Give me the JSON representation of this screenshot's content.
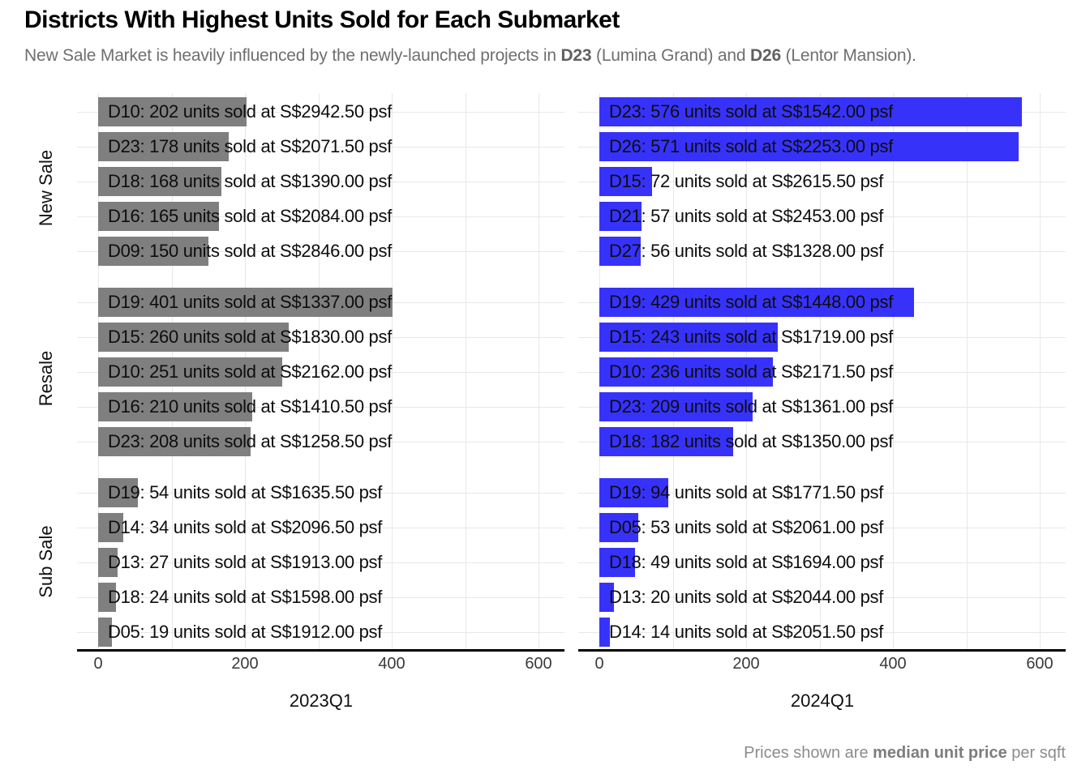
{
  "title": "Districts With Highest Units Sold for Each Submarket",
  "subtitle": {
    "pre": "New Sale Market is heavily influenced by the newly-launched projects in ",
    "bold1": "D23",
    "mid": " (Lumina Grand) and ",
    "bold2": "D26",
    "post": " (Lentor Mansion)."
  },
  "caption": {
    "pre": "Prices shown are ",
    "bold": "median unit price",
    "post": " per sqft"
  },
  "colors": {
    "bar_2023Q1": "#7f7f7f",
    "bar_2024Q1": "#3732fa",
    "gridline": "#e8e8e8",
    "axis_line": "#000000",
    "tick_text": "#3a3a3a",
    "bar_text": "#0d0d0d"
  },
  "chart_data": {
    "type": "bar",
    "orientation": "horizontal",
    "facet_rows": [
      "New Sale",
      "Resale",
      "Sub Sale"
    ],
    "facet_cols": [
      "2023Q1",
      "2024Q1"
    ],
    "x_ticks": [
      0,
      200,
      400,
      600
    ],
    "xlim": [
      0,
      635
    ],
    "grid": "on",
    "value_unit": "units sold",
    "panels": [
      {
        "row": "New Sale",
        "col": "2023Q1",
        "bars": [
          {
            "district": "D10",
            "units": 202,
            "psf": 2942.5,
            "label": "D10: 202 units sold at S$2942.50 psf"
          },
          {
            "district": "D23",
            "units": 178,
            "psf": 2071.5,
            "label": "D23: 178 units sold at S$2071.50 psf"
          },
          {
            "district": "D18",
            "units": 168,
            "psf": 1390.0,
            "label": "D18: 168 units sold at S$1390.00 psf"
          },
          {
            "district": "D16",
            "units": 165,
            "psf": 2084.0,
            "label": "D16: 165 units sold at S$2084.00 psf"
          },
          {
            "district": "D09",
            "units": 150,
            "psf": 2846.0,
            "label": "D09: 150 units sold at S$2846.00 psf"
          }
        ]
      },
      {
        "row": "New Sale",
        "col": "2024Q1",
        "bars": [
          {
            "district": "D23",
            "units": 576,
            "psf": 1542.0,
            "label": "D23: 576 units sold at S$1542.00 psf"
          },
          {
            "district": "D26",
            "units": 571,
            "psf": 2253.0,
            "label": "D26: 571 units sold at S$2253.00 psf"
          },
          {
            "district": "D15",
            "units": 72,
            "psf": 2615.5,
            "label": "D15: 72 units sold at S$2615.50 psf"
          },
          {
            "district": "D21",
            "units": 57,
            "psf": 2453.0,
            "label": "D21: 57 units sold at S$2453.00 psf"
          },
          {
            "district": "D27",
            "units": 56,
            "psf": 1328.0,
            "label": "D27: 56 units sold at S$1328.00 psf"
          }
        ]
      },
      {
        "row": "Resale",
        "col": "2023Q1",
        "bars": [
          {
            "district": "D19",
            "units": 401,
            "psf": 1337.0,
            "label": "D19: 401 units sold at S$1337.00 psf"
          },
          {
            "district": "D15",
            "units": 260,
            "psf": 1830.0,
            "label": "D15: 260 units sold at S$1830.00 psf"
          },
          {
            "district": "D10",
            "units": 251,
            "psf": 2162.0,
            "label": "D10: 251 units sold at S$2162.00 psf"
          },
          {
            "district": "D16",
            "units": 210,
            "psf": 1410.5,
            "label": "D16: 210 units sold at S$1410.50 psf"
          },
          {
            "district": "D23",
            "units": 208,
            "psf": 1258.5,
            "label": "D23: 208 units sold at S$1258.50 psf"
          }
        ]
      },
      {
        "row": "Resale",
        "col": "2024Q1",
        "bars": [
          {
            "district": "D19",
            "units": 429,
            "psf": 1448.0,
            "label": "D19: 429 units sold at S$1448.00 psf"
          },
          {
            "district": "D15",
            "units": 243,
            "psf": 1719.0,
            "label": "D15: 243 units sold at S$1719.00 psf"
          },
          {
            "district": "D10",
            "units": 236,
            "psf": 2171.5,
            "label": "D10: 236 units sold at S$2171.50 psf"
          },
          {
            "district": "D23",
            "units": 209,
            "psf": 1361.0,
            "label": "D23: 209 units sold at S$1361.00 psf"
          },
          {
            "district": "D18",
            "units": 182,
            "psf": 1350.0,
            "label": "D18: 182 units sold at S$1350.00 psf"
          }
        ]
      },
      {
        "row": "Sub Sale",
        "col": "2023Q1",
        "bars": [
          {
            "district": "D19",
            "units": 54,
            "psf": 1635.5,
            "label": "D19: 54 units sold at S$1635.50 psf"
          },
          {
            "district": "D14",
            "units": 34,
            "psf": 2096.5,
            "label": "D14: 34 units sold at S$2096.50 psf"
          },
          {
            "district": "D13",
            "units": 27,
            "psf": 1913.0,
            "label": "D13: 27 units sold at S$1913.00 psf"
          },
          {
            "district": "D18",
            "units": 24,
            "psf": 1598.0,
            "label": "D18: 24 units sold at S$1598.00 psf"
          },
          {
            "district": "D05",
            "units": 19,
            "psf": 1912.0,
            "label": "D05: 19 units sold at S$1912.00 psf"
          }
        ]
      },
      {
        "row": "Sub Sale",
        "col": "2024Q1",
        "bars": [
          {
            "district": "D19",
            "units": 94,
            "psf": 1771.5,
            "label": "D19: 94 units sold at S$1771.50 psf"
          },
          {
            "district": "D05",
            "units": 53,
            "psf": 2061.0,
            "label": "D05: 53 units sold at S$2061.00 psf"
          },
          {
            "district": "D18",
            "units": 49,
            "psf": 1694.0,
            "label": "D18: 49 units sold at S$1694.00 psf"
          },
          {
            "district": "D13",
            "units": 20,
            "psf": 2044.0,
            "label": "D13: 20 units sold at S$2044.00 psf"
          },
          {
            "district": "D14",
            "units": 14,
            "psf": 2051.5,
            "label": "D14: 14 units sold at S$2051.50 psf"
          }
        ]
      }
    ]
  }
}
